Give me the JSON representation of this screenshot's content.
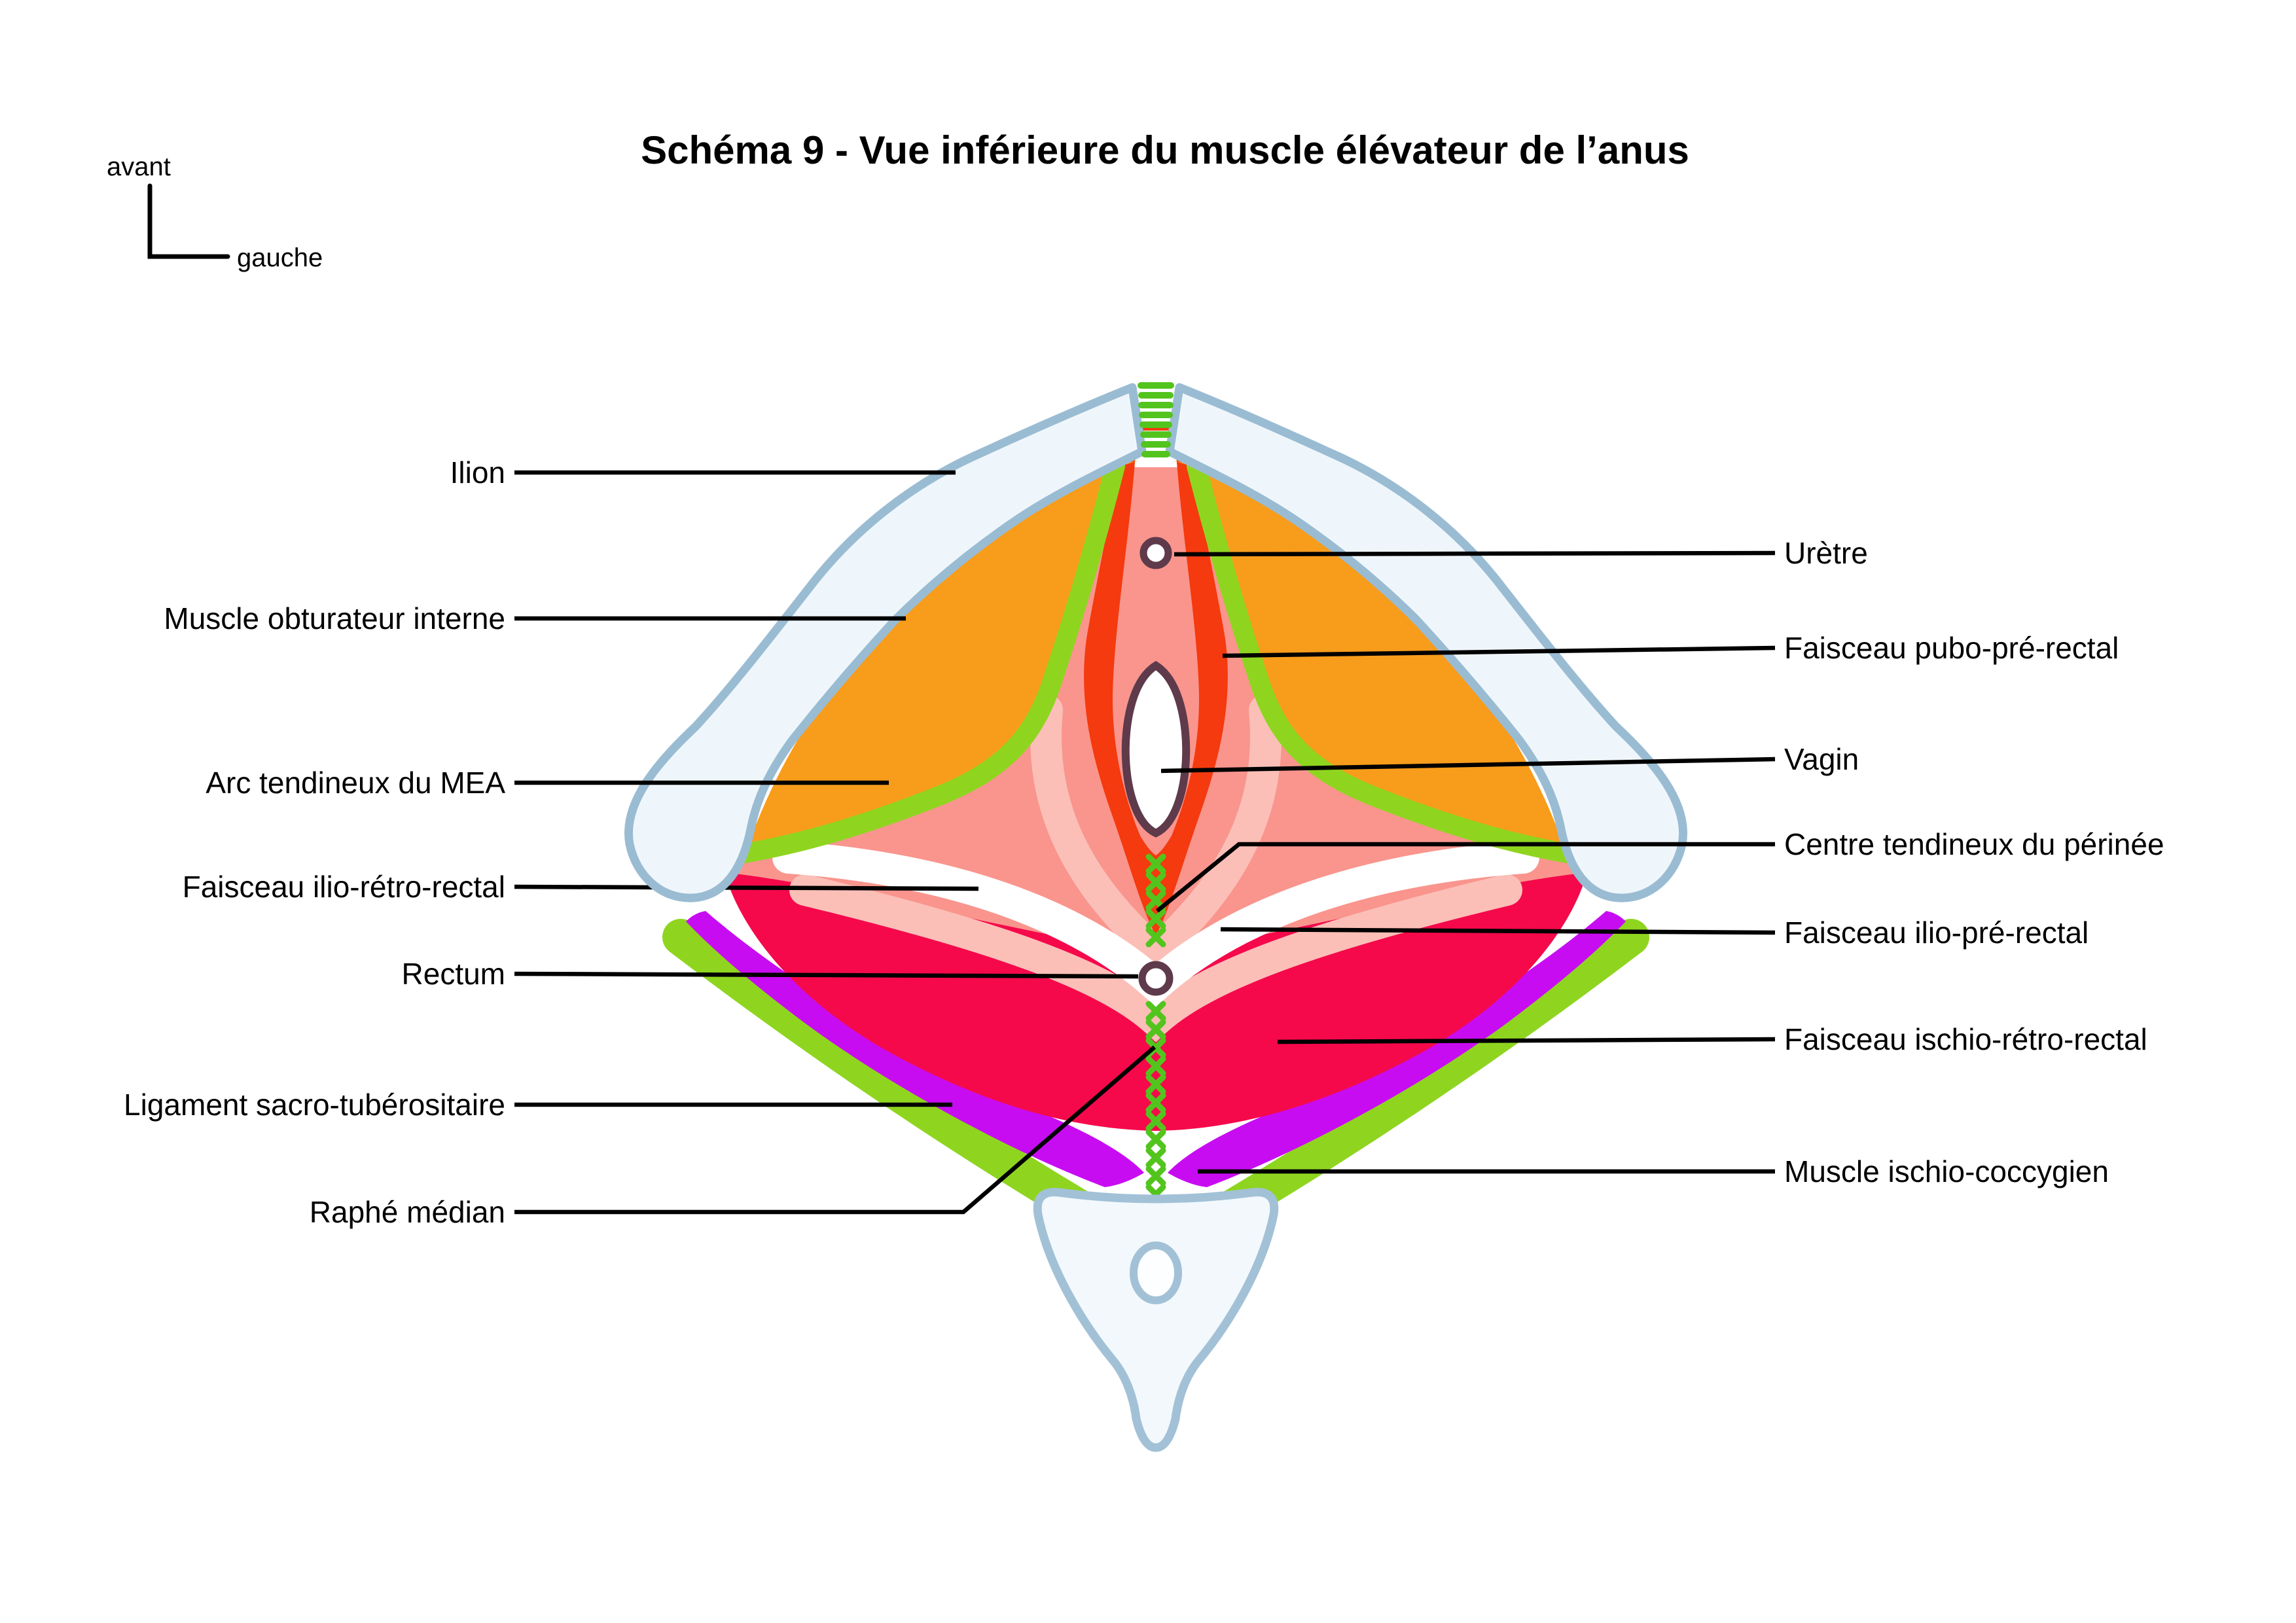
{
  "title": "Schéma 9 - Vue inférieure du muscle élévateur de l’anus",
  "orientation": {
    "up": "avant",
    "side": "gauche"
  },
  "labels": {
    "left": [
      {
        "id": "ilion",
        "text": "Ilion"
      },
      {
        "id": "muscle-obturateur-interne",
        "text": "Muscle obturateur interne"
      },
      {
        "id": "arc-tendineux-mea",
        "text": "Arc tendineux du MEA"
      },
      {
        "id": "faisceau-ilio-retro-rectal",
        "text": "Faisceau ilio-rétro-rectal"
      },
      {
        "id": "rectum",
        "text": "Rectum"
      },
      {
        "id": "ligament-sacro-tuberositaire",
        "text": "Ligament sacro-tubérositaire"
      },
      {
        "id": "raphe-median",
        "text": "Raphé médian"
      }
    ],
    "right": [
      {
        "id": "uretre",
        "text": "Urètre"
      },
      {
        "id": "faisceau-pubo-pre-rectal",
        "text": "Faisceau pubo-pré-rectal"
      },
      {
        "id": "vagin",
        "text": "Vagin"
      },
      {
        "id": "centre-tendineux-perinee",
        "text": "Centre tendineux du périnée"
      },
      {
        "id": "faisceau-ilio-pre-rectal",
        "text": "Faisceau ilio-pré-rectal"
      },
      {
        "id": "faisceau-ischio-retro-rectal",
        "text": "Faisceau ischio-rétro-rectal"
      },
      {
        "id": "muscle-ischio-coccygien",
        "text": "Muscle ischio-coccygien"
      }
    ]
  },
  "colors": {
    "bone-fill": "#EFF6FB",
    "bone-stroke": "#9ABCD3",
    "orange": "#F89C1B",
    "green-band": "#8FD520",
    "green-bright": "#53C41E",
    "red": "#F43A0E",
    "crimson": "#F5094B",
    "magenta": "#C80CF2",
    "salmon": "#F9958D",
    "salmon-light": "#FBBFB7",
    "organ-outline": "#5E3A4B",
    "coccyx-fill": "#F2F8FC",
    "coccyx-stroke": "#A2C1D6",
    "line": "#000000",
    "text": "#000000"
  }
}
